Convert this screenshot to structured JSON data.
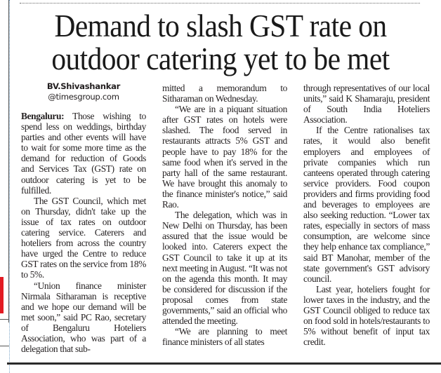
{
  "headline": {
    "line1": "Demand to slash GST rate on",
    "line2": "outdoor catering yet to be met"
  },
  "byline": {
    "name": "BV.Shivashankar",
    "email": "@timesgroup.com"
  },
  "article": {
    "dateline": "Bengaluru:",
    "paragraphs": [
      "Those wishing to spend less on weddings, birthday parties and other events will have to wait for some more time as the demand for reduction of Goods and Services Tax (GST) rate on outdoor catering is yet to be fulfilled.",
      "The GST Council, which met on Thursday, didn't take up the issue of tax rates on outdoor catering service. Caterers and hoteliers from across the country have urged the Centre to reduce GST rates on the service from 18% to 5%.",
      "“Union finance minister Nirmala Sitharaman is receptive and we hope our demand will be met soon,” said PC Rao, secretary of Bengaluru Hoteliers Association, who was part of a delegation that sub-",
      "mitted a memorandum to Sitharaman on Wednesday.",
      "“We are in a piquant situation after GST rates on hotels were slashed. The food served in restaurants attracts 5% GST and people have to pay 18% for the same food when it's served in the party hall of the same restaurant. We have brought this anomaly to the finance minister's notice,” said Rao.",
      "The delegation, which was in New Delhi on Thursday, has been assured that the issue would be looked into. Caterers expect the GST Council to take it up at its next meeting in August. “It was not on the agenda this month. It may be considered for discussion if the proposal comes from state governments,” said an official who attended the meeting.",
      "“We are planning to meet finance ministers of all states",
      "through representatives of our local units,” said K Shamaraju, president of South India Hoteliers Association.",
      "If the Centre rationalises tax rates, it would also benefit employers and employees of private companies which run canteens operated through catering service providers. Food coupon providers and firms providing food and beverages to employees are also seeking reduction. “Lower tax rates, especially in sectors of mass consumption, are welcome since they help enhance tax compliance,” said BT Manohar, member of the state government's GST advisory council.",
      "Last year, hoteliers fought for lower taxes in the industry, and the GST Council obliged to reduce tax on food sold in hotels/restaurants to 5% without benefit of input tax credit."
    ]
  },
  "colors": {
    "text": "#231f20",
    "side_accent": "#e21b23",
    "side_dots": "#7fa7c9"
  }
}
